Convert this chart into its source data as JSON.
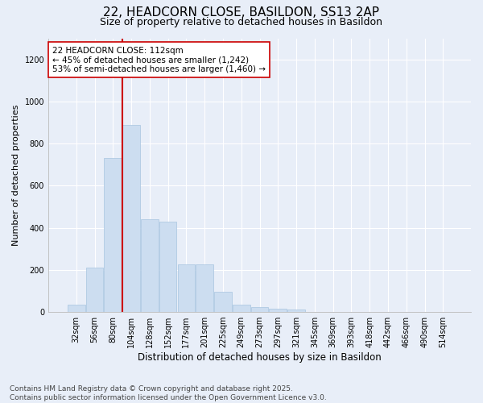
{
  "title": "22, HEADCORN CLOSE, BASILDON, SS13 2AP",
  "subtitle": "Size of property relative to detached houses in Basildon",
  "xlabel": "Distribution of detached houses by size in Basildon",
  "ylabel": "Number of detached properties",
  "categories": [
    "32sqm",
    "56sqm",
    "80sqm",
    "104sqm",
    "128sqm",
    "152sqm",
    "177sqm",
    "201sqm",
    "225sqm",
    "249sqm",
    "273sqm",
    "297sqm",
    "321sqm",
    "345sqm",
    "369sqm",
    "393sqm",
    "418sqm",
    "442sqm",
    "466sqm",
    "490sqm",
    "514sqm"
  ],
  "values": [
    35,
    210,
    730,
    890,
    440,
    430,
    225,
    225,
    95,
    35,
    25,
    15,
    10,
    0,
    0,
    0,
    0,
    0,
    0,
    0,
    0
  ],
  "bar_color": "#ccddf0",
  "bar_edge_color": "#a8c4e0",
  "vline_color": "#cc0000",
  "vline_pos": 3.5,
  "annotation_line1": "22 HEADCORN CLOSE: 112sqm",
  "annotation_line2": "← 45% of detached houses are smaller (1,242)",
  "annotation_line3": "53% of semi-detached houses are larger (1,460) →",
  "annotation_box_color": "#ffffff",
  "annotation_box_edge": "#cc0000",
  "ylim": [
    0,
    1300
  ],
  "yticks": [
    0,
    200,
    400,
    600,
    800,
    1000,
    1200
  ],
  "background_color": "#e8eef8",
  "grid_color": "#ffffff",
  "footer": "Contains HM Land Registry data © Crown copyright and database right 2025.\nContains public sector information licensed under the Open Government Licence v3.0.",
  "title_fontsize": 11,
  "subtitle_fontsize": 9,
  "ylabel_fontsize": 8,
  "xlabel_fontsize": 8.5,
  "tick_fontsize": 7,
  "annotation_fontsize": 7.5,
  "footer_fontsize": 6.5
}
